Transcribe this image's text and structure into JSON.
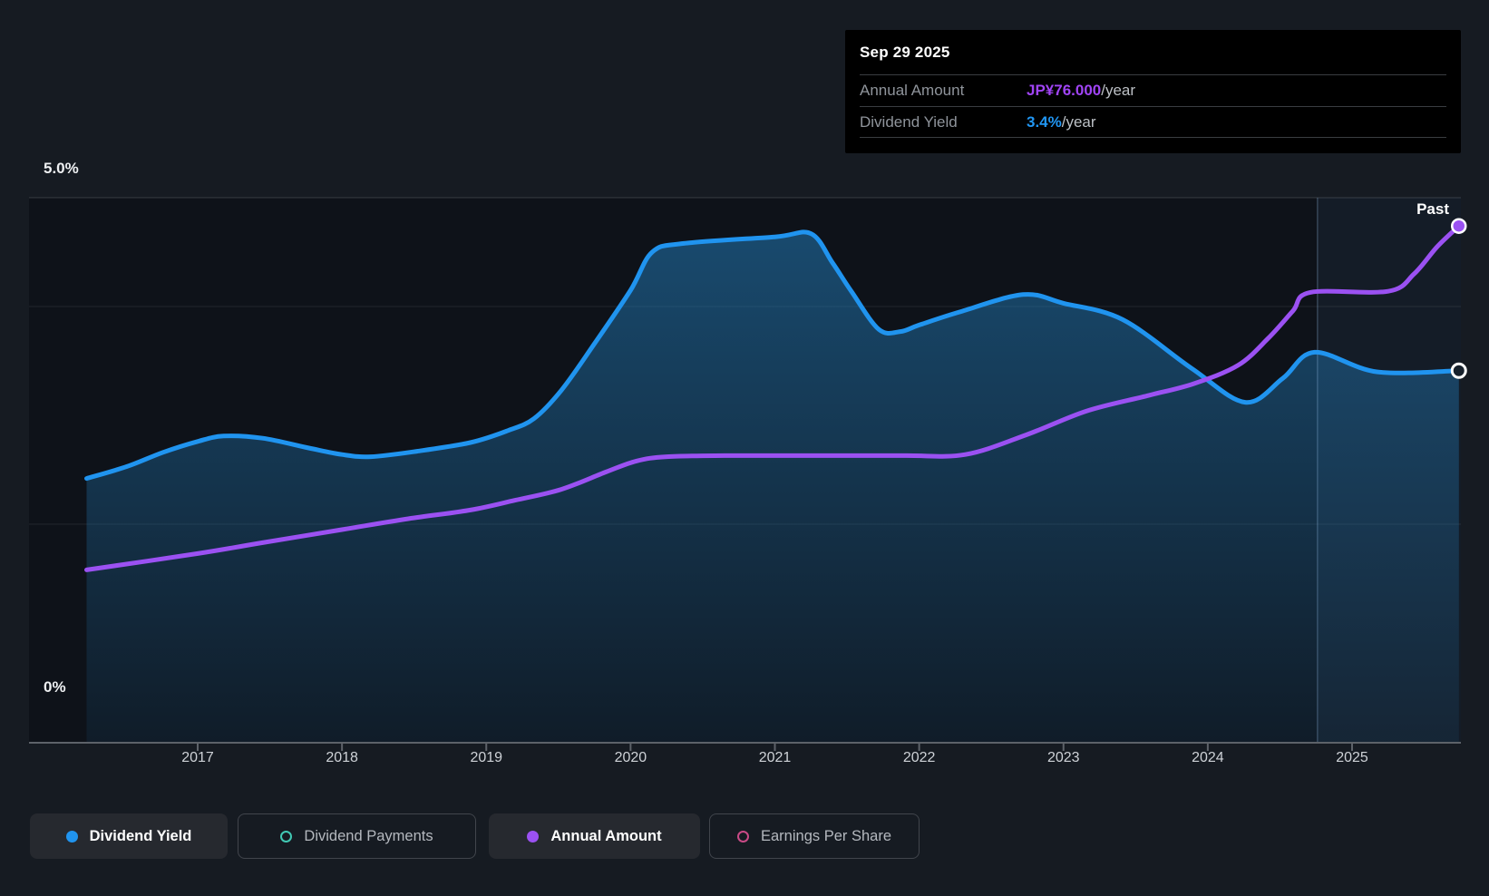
{
  "tooltip": {
    "date": "Sep 29 2025",
    "rows": [
      {
        "label": "Annual Amount",
        "value": "JP¥76.000",
        "suffix": "/year",
        "color": "#a044f5"
      },
      {
        "label": "Dividend Yield",
        "value": "3.4%",
        "suffix": "/year",
        "color": "#2196f3"
      }
    ]
  },
  "past_label": "Past",
  "y_axis": {
    "top_label": "5.0%",
    "bottom_label": "0%"
  },
  "x_axis": {
    "years": [
      "2017",
      "2018",
      "2019",
      "2020",
      "2021",
      "2022",
      "2023",
      "2024",
      "2025"
    ]
  },
  "legend": {
    "items": [
      {
        "label": "Dividend Yield",
        "marker": "filled",
        "color": "#2094ef",
        "active": true
      },
      {
        "label": "Dividend Payments",
        "marker": "ring",
        "color": "#41c9b4",
        "active": false
      },
      {
        "label": "Annual Amount",
        "marker": "filled",
        "color": "#9b51f2",
        "active": true
      },
      {
        "label": "Earnings Per Share",
        "marker": "ring",
        "color": "#c94a86",
        "active": false
      }
    ]
  },
  "chart_data": {
    "type": "area",
    "title": "Dividend history",
    "y_unit": "percent yield (left axis 0% - 5.0%)",
    "ylim": [
      0,
      5
    ],
    "x_range_years": [
      2016.23,
      2025.75
    ],
    "gridlines_pct": [
      5,
      4,
      2
    ],
    "grid": true,
    "legend_position": "bottom",
    "past_band_start_year": 2024.76,
    "hover_point": {
      "date": "Sep 29 2025",
      "dividend_yield_pct": 3.4,
      "annual_amount_jpy_per_year": 76.0
    },
    "series": [
      {
        "name": "Dividend Yield",
        "unit": "%",
        "color": "#2094ef",
        "style": "area",
        "end_dot": "open",
        "points": [
          [
            2016.23,
            2.42
          ],
          [
            2016.51,
            2.53
          ],
          [
            2016.76,
            2.66
          ],
          [
            2017.0,
            2.76
          ],
          [
            2017.18,
            2.81
          ],
          [
            2017.45,
            2.79
          ],
          [
            2017.77,
            2.7
          ],
          [
            2018.0,
            2.64
          ],
          [
            2018.2,
            2.62
          ],
          [
            2018.52,
            2.67
          ],
          [
            2018.89,
            2.75
          ],
          [
            2019.15,
            2.86
          ],
          [
            2019.33,
            2.97
          ],
          [
            2019.52,
            3.23
          ],
          [
            2019.74,
            3.64
          ],
          [
            2020.0,
            4.15
          ],
          [
            2020.15,
            4.5
          ],
          [
            2020.37,
            4.58
          ],
          [
            2021.0,
            4.64
          ],
          [
            2021.25,
            4.67
          ],
          [
            2021.4,
            4.4
          ],
          [
            2021.53,
            4.14
          ],
          [
            2021.72,
            3.79
          ],
          [
            2021.87,
            3.77
          ],
          [
            2022.0,
            3.83
          ],
          [
            2022.28,
            3.95
          ],
          [
            2022.72,
            4.11
          ],
          [
            2023.0,
            4.03
          ],
          [
            2023.41,
            3.88
          ],
          [
            2023.89,
            3.43
          ],
          [
            2024.26,
            3.12
          ],
          [
            2024.52,
            3.34
          ],
          [
            2024.74,
            3.58
          ],
          [
            2025.17,
            3.4
          ],
          [
            2025.74,
            3.41
          ]
        ]
      },
      {
        "name": "Annual Amount",
        "unit": "yield-scale equivalent (axis hidden; last value = JP¥76.000/year)",
        "color": "#9b51f2",
        "style": "line",
        "end_dot": "filled",
        "points": [
          [
            2016.23,
            1.58
          ],
          [
            2017.0,
            1.73
          ],
          [
            2017.45,
            1.83
          ],
          [
            2018.0,
            1.95
          ],
          [
            2018.46,
            2.05
          ],
          [
            2018.89,
            2.13
          ],
          [
            2019.2,
            2.22
          ],
          [
            2019.52,
            2.32
          ],
          [
            2019.83,
            2.48
          ],
          [
            2020.04,
            2.58
          ],
          [
            2020.25,
            2.62
          ],
          [
            2020.65,
            2.63
          ],
          [
            2021.3,
            2.63
          ],
          [
            2021.9,
            2.63
          ],
          [
            2022.32,
            2.64
          ],
          [
            2022.74,
            2.82
          ],
          [
            2023.16,
            3.04
          ],
          [
            2023.58,
            3.18
          ],
          [
            2023.9,
            3.29
          ],
          [
            2024.21,
            3.46
          ],
          [
            2024.42,
            3.71
          ],
          [
            2024.59,
            3.96
          ],
          [
            2024.71,
            4.13
          ],
          [
            2025.25,
            4.14
          ],
          [
            2025.43,
            4.3
          ],
          [
            2025.59,
            4.55
          ],
          [
            2025.74,
            4.74
          ]
        ]
      }
    ]
  }
}
